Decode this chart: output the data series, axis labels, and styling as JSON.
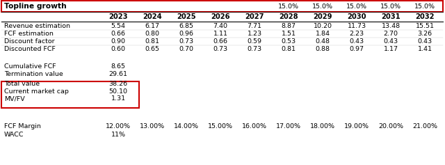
{
  "title": "Topline growth",
  "topline_growth_cols": [
    "",
    "",
    "",
    "",
    "",
    "15.0%",
    "15.0%",
    "15.0%",
    "15.0%",
    "15.0%"
  ],
  "years": [
    "2023",
    "2024",
    "2025",
    "2026",
    "2027",
    "2028",
    "2029",
    "2030",
    "2031",
    "2032"
  ],
  "rows": [
    {
      "label": "Revenue estimation",
      "values": [
        "5.54",
        "6.17",
        "6.85",
        "7.40",
        "7.71",
        "8.87",
        "10.20",
        "11.73",
        "13.48",
        "15.51"
      ]
    },
    {
      "label": "FCF estimation",
      "values": [
        "0.66",
        "0.80",
        "0.96",
        "1.11",
        "1.23",
        "1.51",
        "1.84",
        "2.23",
        "2.70",
        "3.26"
      ]
    },
    {
      "label": "Discount factor",
      "values": [
        "0.90",
        "0.81",
        "0.73",
        "0.66",
        "0.59",
        "0.53",
        "0.48",
        "0.43",
        "0.43",
        "0.43"
      ]
    },
    {
      "label": "Discounted FCF",
      "values": [
        "0.60",
        "0.65",
        "0.70",
        "0.73",
        "0.73",
        "0.81",
        "0.88",
        "0.97",
        "1.17",
        "1.41"
      ]
    }
  ],
  "summary_rows": [
    {
      "label": "Cumulative FCF",
      "value": "8.65"
    },
    {
      "label": "Termination value",
      "value": "29.61"
    }
  ],
  "boxed_rows": [
    {
      "label": "Total value",
      "value": "38.26"
    },
    {
      "label": "Current market cap",
      "value": "50.10"
    },
    {
      "label": "MV/FV",
      "value": "1.31"
    }
  ],
  "fcf_margin": [
    "12.00%",
    "13.00%",
    "14.00%",
    "15.00%",
    "16.00%",
    "17.00%",
    "18.00%",
    "19.00%",
    "20.00%",
    "21.00%"
  ],
  "wacc": "11%",
  "red": "#cc0000",
  "font_size": 6.8,
  "bold_font_size": 7.2
}
